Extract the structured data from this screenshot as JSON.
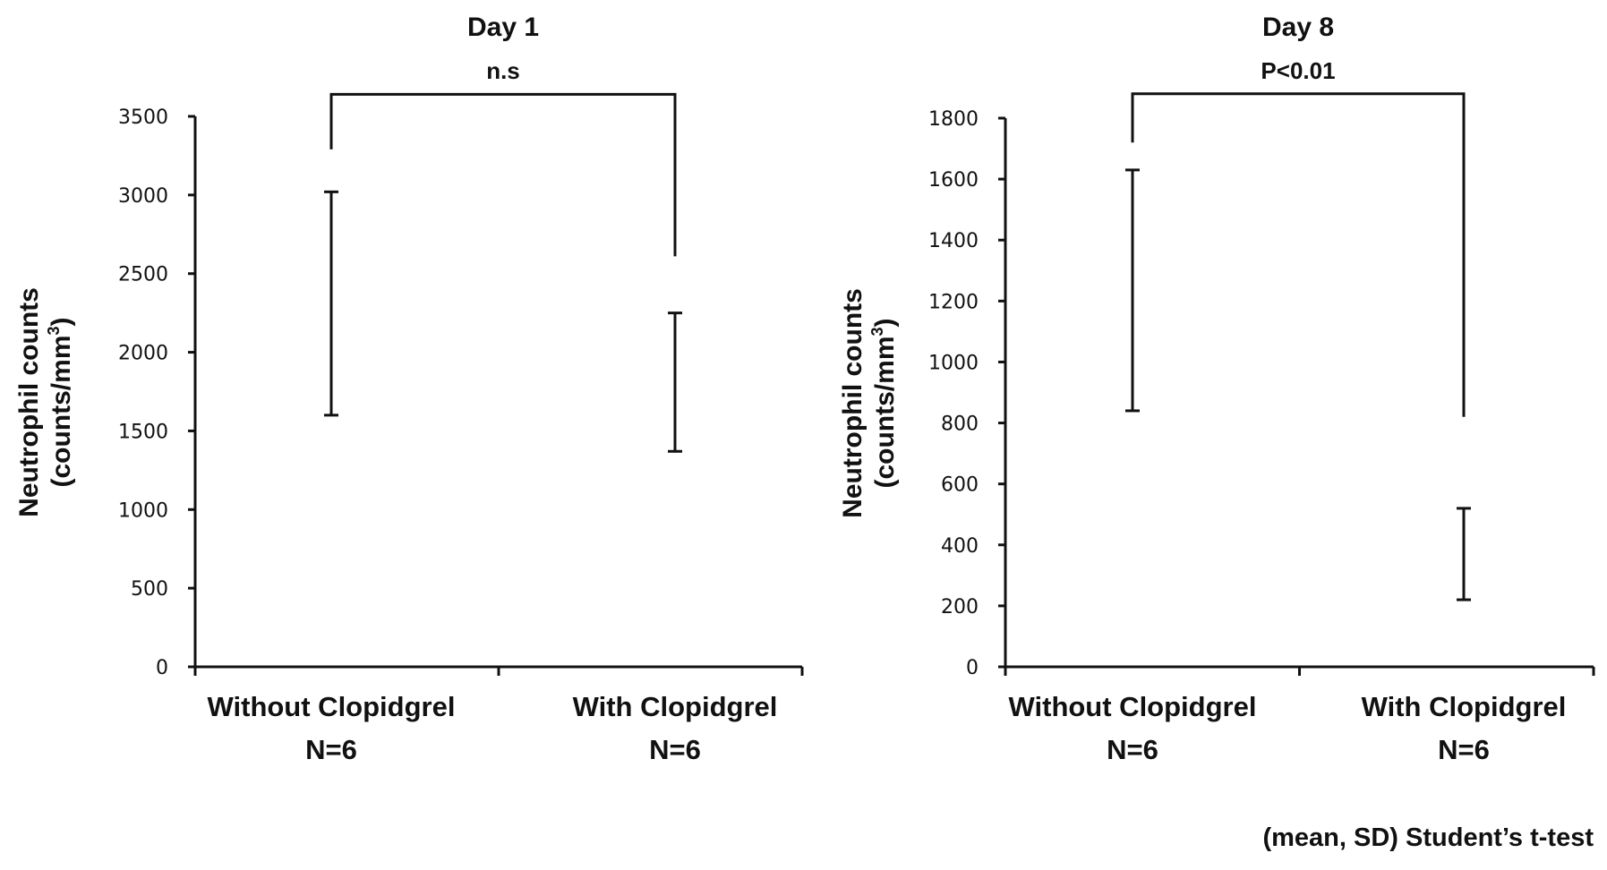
{
  "chart_data": [
    {
      "type": "errorbar",
      "title": "Day 1",
      "significance": "n.s",
      "ylabel_line1": "Neutrophil counts",
      "ylabel_line2": "(counts/mm",
      "ylabel_sup": "3",
      "ylabel_close": ")",
      "ylim": [
        0,
        3500
      ],
      "yticks": [
        0,
        500,
        1000,
        1500,
        2000,
        2500,
        3000,
        3500
      ],
      "grid": false,
      "categories": [
        {
          "label": "Without Clopidgrel",
          "n": "N=6",
          "lower": 1600,
          "upper": 3020
        },
        {
          "label": "With Clopidgrel",
          "n": "N=6",
          "lower": 1370,
          "upper": 2250
        }
      ],
      "bracket_top": 3640,
      "bracket_left_bottom": 3290,
      "bracket_right_bottom": 2610
    },
    {
      "type": "errorbar",
      "title": "Day 8",
      "significance": "P<0.01",
      "ylabel_line1": "Neutrophil counts",
      "ylabel_line2": "(counts/mm",
      "ylabel_sup": "3",
      "ylabel_close": ")",
      "ylim": [
        0,
        1800
      ],
      "yticks": [
        0,
        200,
        400,
        600,
        800,
        1000,
        1200,
        1400,
        1600,
        1800
      ],
      "grid": false,
      "categories": [
        {
          "label": "Without Clopidgrel",
          "n": "N=6",
          "lower": 840,
          "upper": 1630
        },
        {
          "label": "With Clopidgrel",
          "n": "N=6",
          "lower": 220,
          "upper": 520
        }
      ],
      "bracket_top": 1880,
      "bracket_left_bottom": 1720,
      "bracket_right_bottom": 820
    }
  ],
  "footnote": "(mean, SD) Student’s t-test"
}
